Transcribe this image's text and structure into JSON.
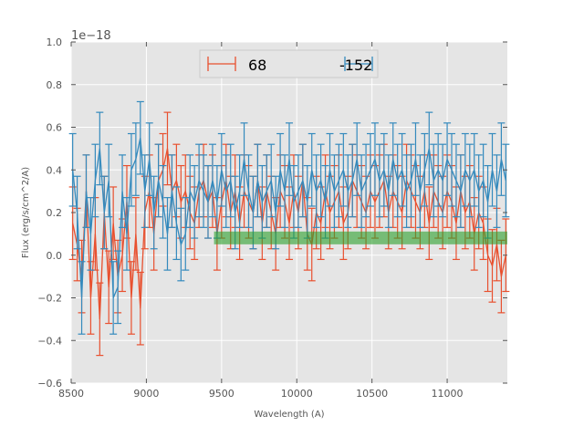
{
  "chart_data": {
    "type": "line",
    "title": "",
    "xlabel": "Wavelength (A)",
    "ylabel": "Flux (erg/s/cm^2/A)",
    "y_offset_label": "1e−18",
    "xlim": [
      8500,
      11400
    ],
    "ylim": [
      -0.6,
      1.0
    ],
    "xticks": [
      8500,
      9000,
      9500,
      10000,
      10500,
      11000
    ],
    "xtick_labels": [
      "8500",
      "9000",
      "9500",
      "10000",
      "10500",
      "11000"
    ],
    "yticks": [
      -0.6,
      -0.4,
      -0.2,
      0.0,
      0.2,
      0.4,
      0.6,
      0.8,
      1.0
    ],
    "ytick_labels": [
      "−0.6",
      "−0.4",
      "−0.2",
      "0.0",
      "0.2",
      "0.4",
      "0.6",
      "0.8",
      "1.0"
    ],
    "grid": true,
    "legend": "top-center",
    "x_start": 8510,
    "x_step": 30,
    "band": {
      "x": [
        9450,
        11400
      ],
      "y": [
        0.051,
        0.111
      ],
      "color": "#2ca02c"
    },
    "series": [
      {
        "name": "68",
        "color": "#e8502f",
        "yerr": 0.17,
        "values": [
          0.15,
          0.05,
          -0.1,
          0.3,
          -0.2,
          0.1,
          -0.3,
          0.2,
          -0.15,
          0.15,
          -0.1,
          0.0,
          0.25,
          -0.2,
          0.1,
          -0.25,
          0.2,
          0.3,
          0.1,
          0.35,
          0.4,
          0.5,
          0.3,
          0.35,
          0.25,
          0.3,
          0.2,
          0.15,
          0.3,
          0.35,
          0.25,
          0.3,
          0.1,
          0.25,
          0.35,
          0.2,
          0.3,
          0.15,
          0.3,
          0.25,
          0.2,
          0.35,
          0.15,
          0.3,
          0.2,
          0.1,
          0.3,
          0.25,
          0.15,
          0.3,
          0.2,
          0.35,
          0.1,
          0.05,
          0.2,
          0.15,
          0.3,
          0.2,
          0.25,
          0.3,
          0.15,
          0.2,
          0.35,
          0.3,
          0.25,
          0.2,
          0.3,
          0.25,
          0.3,
          0.35,
          0.2,
          0.3,
          0.25,
          0.2,
          0.35,
          0.3,
          0.25,
          0.2,
          0.3,
          0.15,
          0.3,
          0.25,
          0.2,
          0.3,
          0.25,
          0.15,
          0.3,
          0.2,
          0.25,
          0.1,
          0.2,
          0.15,
          0.0,
          -0.05,
          0.05,
          -0.1,
          0.0
        ]
      },
      {
        "name": "-152",
        "color": "#348abd",
        "yerr": 0.17,
        "values": [
          0.4,
          0.2,
          -0.2,
          0.3,
          0.1,
          0.35,
          0.5,
          0.2,
          0.35,
          -0.2,
          -0.15,
          0.3,
          0.1,
          0.4,
          0.45,
          0.55,
          0.3,
          0.45,
          0.2,
          0.35,
          0.25,
          0.1,
          0.3,
          0.15,
          0.05,
          0.1,
          0.3,
          0.25,
          0.35,
          0.3,
          0.25,
          0.35,
          0.25,
          0.4,
          0.3,
          0.35,
          0.2,
          0.3,
          0.45,
          0.3,
          0.2,
          0.35,
          0.25,
          0.3,
          0.35,
          0.2,
          0.4,
          0.3,
          0.45,
          0.25,
          0.3,
          0.35,
          0.25,
          0.4,
          0.3,
          0.35,
          0.25,
          0.4,
          0.3,
          0.35,
          0.4,
          0.3,
          0.35,
          0.45,
          0.3,
          0.35,
          0.4,
          0.45,
          0.35,
          0.4,
          0.3,
          0.45,
          0.35,
          0.4,
          0.3,
          0.35,
          0.45,
          0.3,
          0.4,
          0.5,
          0.35,
          0.4,
          0.35,
          0.45,
          0.4,
          0.35,
          0.3,
          0.4,
          0.35,
          0.4,
          0.3,
          0.35,
          0.25,
          0.4,
          0.3,
          0.45,
          0.35
        ]
      }
    ]
  }
}
